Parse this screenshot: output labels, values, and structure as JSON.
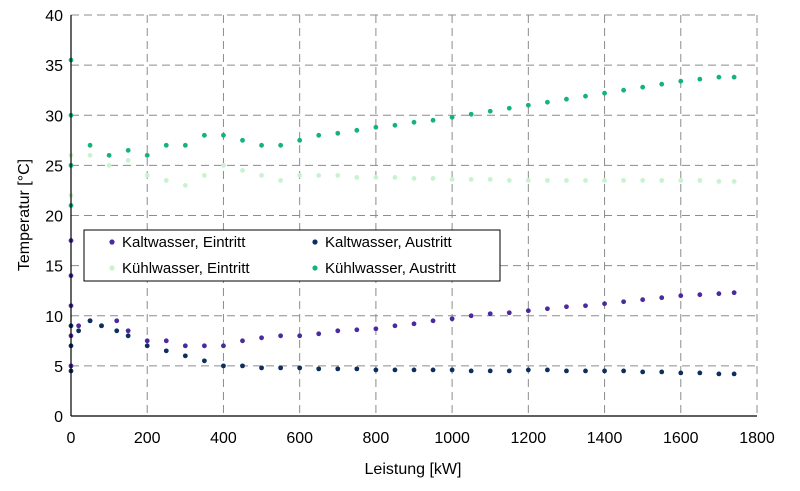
{
  "chart_data": {
    "type": "scatter",
    "title": "",
    "xlabel": "Leistung [kW]",
    "ylabel": "Temperatur [°C]",
    "xlim": [
      0,
      1800
    ],
    "ylim": [
      0,
      40
    ],
    "x_ticks": [
      "0",
      "200",
      "400",
      "600",
      "800",
      "1000",
      "1200",
      "1400",
      "1600",
      "1800"
    ],
    "y_ticks": [
      "0",
      "5",
      "10",
      "15",
      "20",
      "25",
      "30",
      "35",
      "40"
    ],
    "grid": true,
    "legend_placement": "center-left",
    "series": [
      {
        "name": "Kaltwasser, Eintritt",
        "color": "#4b2a9e",
        "x": [
          0,
          0,
          0,
          0,
          0,
          20,
          50,
          80,
          120,
          150,
          200,
          250,
          300,
          350,
          400,
          450,
          500,
          550,
          600,
          650,
          700,
          750,
          800,
          850,
          900,
          950,
          1000,
          1050,
          1100,
          1150,
          1200,
          1250,
          1300,
          1350,
          1400,
          1450,
          1500,
          1550,
          1600,
          1650,
          1700,
          1740
        ],
        "y": [
          17.5,
          14,
          11,
          8,
          5,
          9,
          9.5,
          9,
          9.5,
          8.5,
          7.5,
          7.5,
          7,
          7,
          7,
          7.5,
          7.8,
          8,
          8,
          8.2,
          8.5,
          8.6,
          8.7,
          9,
          9.2,
          9.5,
          9.7,
          10,
          10.2,
          10.3,
          10.5,
          10.7,
          10.9,
          11,
          11.2,
          11.4,
          11.6,
          11.8,
          12,
          12.1,
          12.2,
          12.3
        ]
      },
      {
        "name": "Kaltwasser, Austritt",
        "color": "#0e2f5e",
        "x": [
          0,
          0,
          0,
          20,
          50,
          80,
          120,
          150,
          200,
          250,
          300,
          350,
          400,
          450,
          500,
          550,
          600,
          650,
          700,
          750,
          800,
          850,
          900,
          950,
          1000,
          1050,
          1100,
          1150,
          1200,
          1250,
          1300,
          1350,
          1400,
          1450,
          1500,
          1550,
          1600,
          1650,
          1700,
          1740
        ],
        "y": [
          9,
          7,
          4.5,
          8.5,
          9.5,
          9,
          8.5,
          8,
          7,
          6.5,
          6,
          5.5,
          5,
          5,
          4.8,
          4.8,
          4.8,
          4.7,
          4.7,
          4.7,
          4.6,
          4.6,
          4.6,
          4.6,
          4.6,
          4.5,
          4.5,
          4.5,
          4.6,
          4.6,
          4.5,
          4.5,
          4.5,
          4.5,
          4.4,
          4.4,
          4.3,
          4.3,
          4.2,
          4.2
        ]
      },
      {
        "name": "Kühlwasser, Eintritt",
        "color": "#c9f3cf",
        "x": [
          0,
          0,
          50,
          100,
          150,
          200,
          250,
          300,
          350,
          400,
          450,
          500,
          550,
          600,
          650,
          700,
          750,
          800,
          850,
          900,
          950,
          1000,
          1050,
          1100,
          1150,
          1200,
          1250,
          1300,
          1350,
          1400,
          1450,
          1500,
          1550,
          1600,
          1650,
          1700,
          1740
        ],
        "y": [
          26,
          22,
          26,
          25,
          25.5,
          24,
          23.5,
          23,
          24,
          25,
          24.5,
          24,
          23.5,
          24,
          24,
          24,
          23.8,
          23.8,
          23.8,
          23.7,
          23.7,
          23.6,
          23.6,
          23.6,
          23.5,
          23.5,
          23.5,
          23.5,
          23.5,
          23.5,
          23.5,
          23.5,
          23.5,
          23.5,
          23.5,
          23.4,
          23.4
        ]
      },
      {
        "name": "Kühlwasser, Austritt",
        "color": "#14b37d",
        "x": [
          0,
          0,
          0,
          0,
          50,
          100,
          150,
          200,
          250,
          300,
          350,
          400,
          450,
          500,
          550,
          600,
          650,
          700,
          750,
          800,
          850,
          900,
          950,
          1000,
          1050,
          1100,
          1150,
          1200,
          1250,
          1300,
          1350,
          1400,
          1450,
          1500,
          1550,
          1600,
          1650,
          1700,
          1740
        ],
        "y": [
          35.5,
          30,
          25,
          21,
          27,
          26,
          26.5,
          26,
          27,
          27,
          28,
          28,
          27.5,
          27,
          27,
          27.5,
          28,
          28.2,
          28.5,
          28.8,
          29,
          29.3,
          29.5,
          29.8,
          30.1,
          30.4,
          30.7,
          31,
          31.3,
          31.6,
          31.9,
          32.2,
          32.5,
          32.8,
          33.1,
          33.4,
          33.6,
          33.8,
          33.8
        ]
      }
    ]
  }
}
